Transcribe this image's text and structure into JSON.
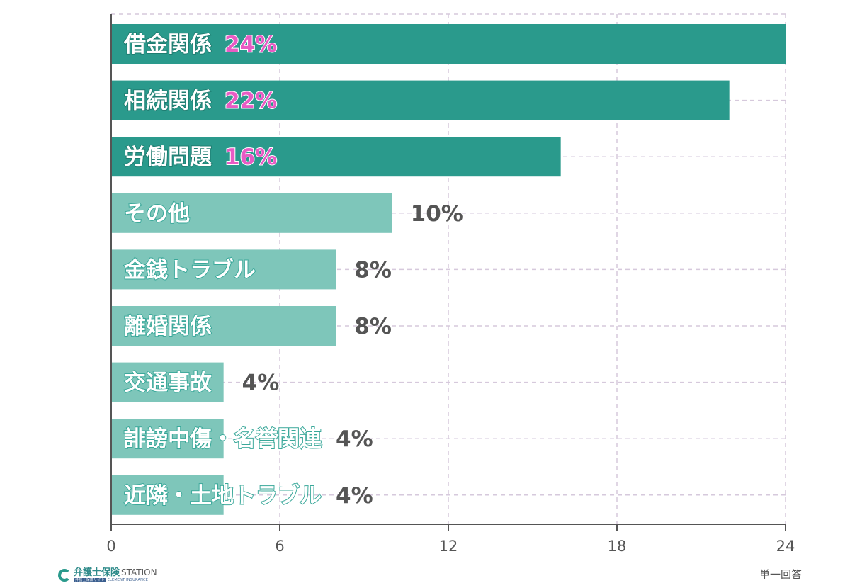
{
  "chart_data": {
    "type": "bar",
    "orientation": "horizontal",
    "categories": [
      "借金関係",
      "相続関係",
      "労働問題",
      "その他",
      "金銭トラブル",
      "離婚関係",
      "交通事故",
      "誹謗中傷・名誉関連",
      "近隣・土地トラブル"
    ],
    "values": [
      24,
      22,
      16,
      10,
      8,
      8,
      4,
      4,
      4
    ],
    "value_labels": [
      "24%",
      "22%",
      "16%",
      "10%",
      "8%",
      "8%",
      "4%",
      "4%",
      "4%"
    ],
    "xlim": [
      0,
      24
    ],
    "xticks": [
      "0",
      "6",
      "12",
      "18",
      "24"
    ],
    "title": "",
    "xlabel": "",
    "ylabel": "",
    "grid": true,
    "colors": {
      "top_bar": "#2a9a8c",
      "other_bar": "#7ec6ba",
      "top_label": "#e85bc4",
      "other_label": "#555555",
      "grid": "#d6c9dc",
      "axis": "#555555"
    },
    "highlight_count": 3
  },
  "footer": {
    "brand_name": "弁護士保険",
    "brand_suffix": "STATION",
    "brand_sub_pill": "弁護士保険サイト",
    "brand_sub": "ELEMENT INSURANCE",
    "note": "単一回答"
  }
}
